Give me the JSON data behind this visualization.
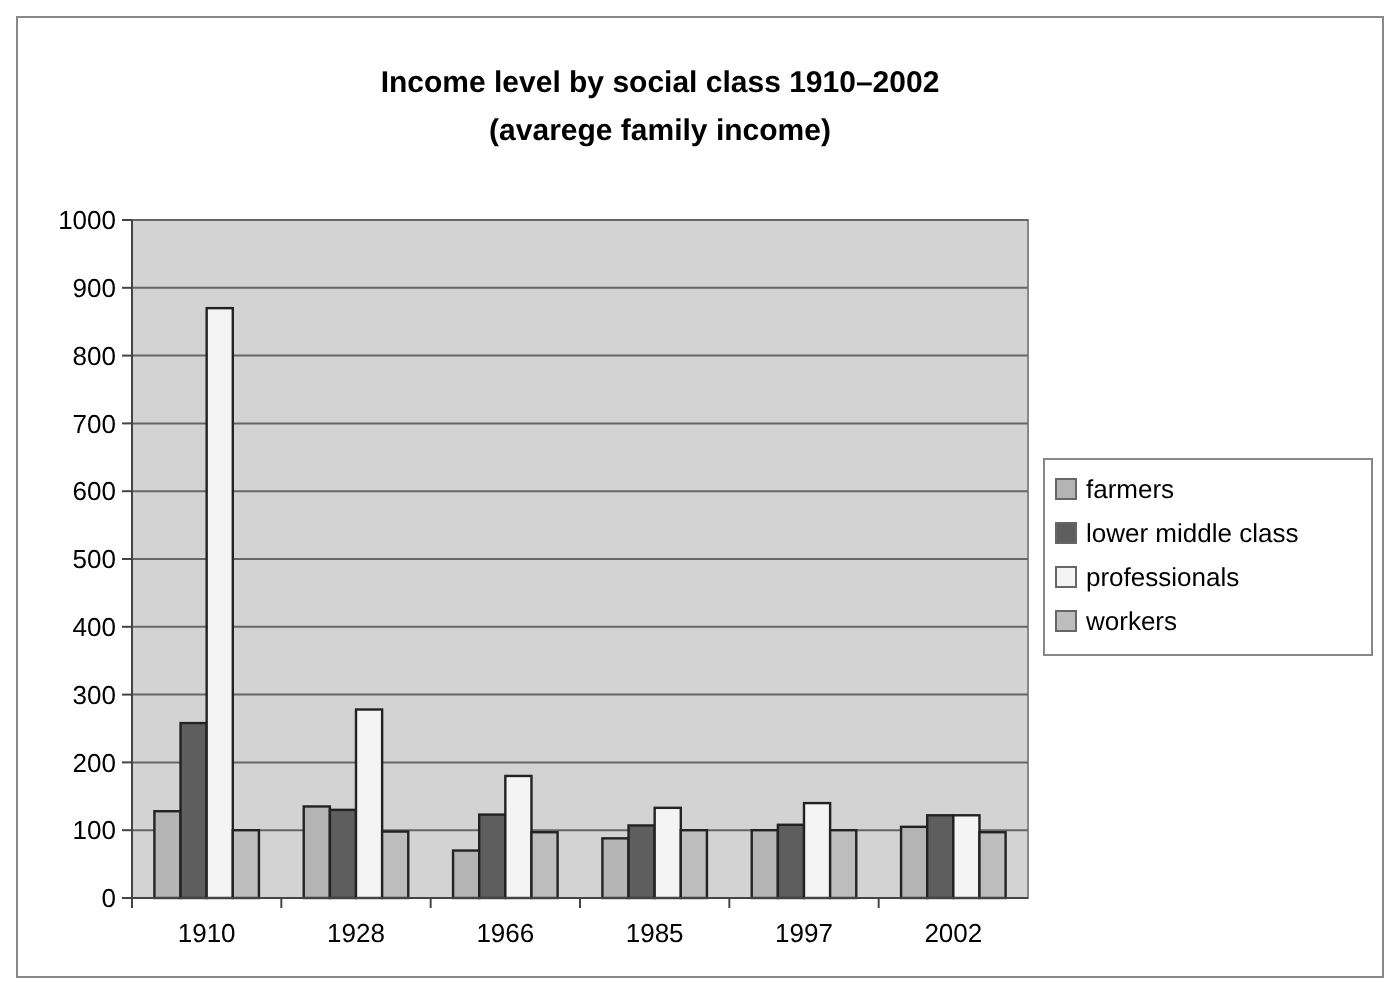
{
  "chart_data": {
    "type": "bar",
    "title": "Income level by  social class 1910–2002",
    "subtitle": "(avarege family income)",
    "categories": [
      "1910",
      "1928",
      "1966",
      "1985",
      "1997",
      "2002"
    ],
    "series": [
      {
        "name": "farmers",
        "color": "#b4b4b4",
        "values": [
          128,
          135,
          70,
          88,
          100,
          105
        ]
      },
      {
        "name": "lower middle class",
        "color": "#5e5e5e",
        "values": [
          258,
          130,
          123,
          107,
          108,
          122
        ]
      },
      {
        "name": "professionals",
        "color": "#f4f4f4",
        "values": [
          870,
          278,
          180,
          133,
          140,
          122
        ]
      },
      {
        "name": "workers",
        "color": "#bdbdbd",
        "values": [
          100,
          98,
          97,
          100,
          100,
          97
        ]
      }
    ],
    "ylim": [
      0,
      1000
    ],
    "yticks": [
      0,
      100,
      200,
      300,
      400,
      500,
      600,
      700,
      800,
      900,
      1000
    ],
    "grid": "y",
    "legend": "right"
  }
}
